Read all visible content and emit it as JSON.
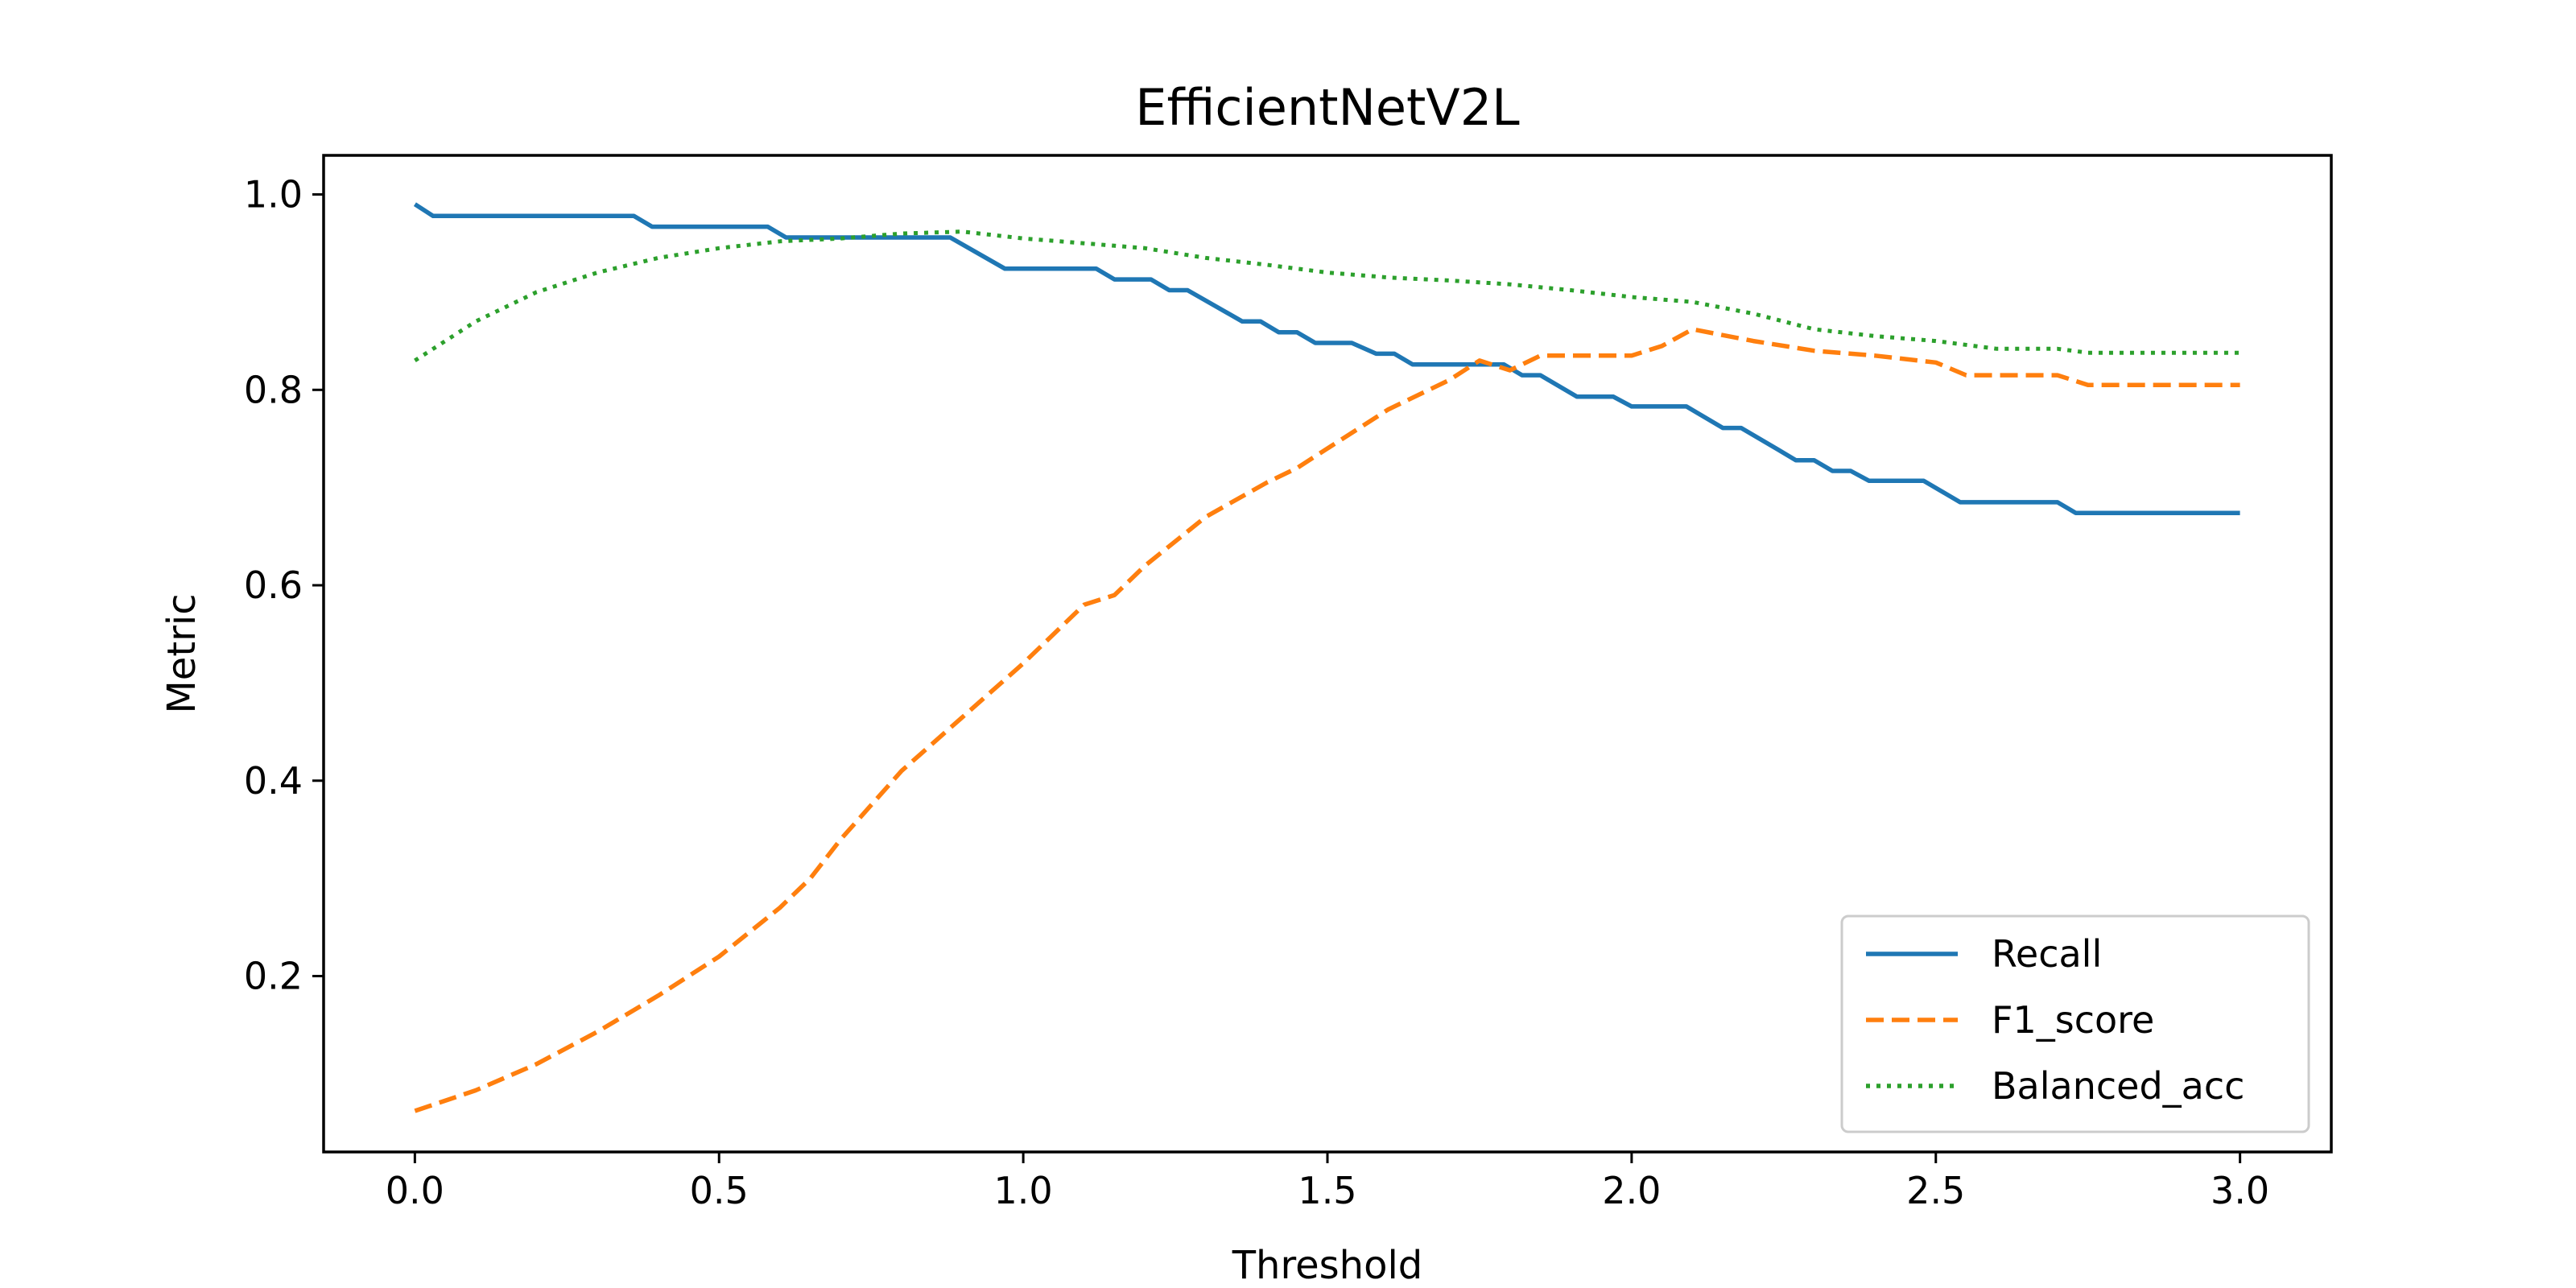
{
  "chart_data": {
    "type": "line",
    "title": "EfficientNetV2L",
    "xlabel": "Threshold",
    "ylabel": "Metric",
    "xlim": [
      -0.15,
      3.15
    ],
    "ylim": [
      0.02,
      1.04
    ],
    "xticks": [
      0.0,
      0.5,
      1.0,
      1.5,
      2.0,
      2.5,
      3.0
    ],
    "xtick_labels": [
      "0.0",
      "0.5",
      "1.0",
      "1.5",
      "2.0",
      "2.5",
      "3.0"
    ],
    "yticks": [
      0.2,
      0.4,
      0.6,
      0.8,
      1.0
    ],
    "ytick_labels": [
      "0.2",
      "0.4",
      "0.6",
      "0.8",
      "1.0"
    ],
    "grid": false,
    "legend_position": "lower-right",
    "series": [
      {
        "name": "Recall",
        "color": "#1f77b4",
        "style": "solid",
        "x": [
          0.0,
          0.03,
          0.36,
          0.39,
          0.58,
          0.61,
          0.88,
          0.97,
          1.12,
          1.15,
          1.21,
          1.24,
          1.27,
          1.36,
          1.39,
          1.42,
          1.45,
          1.48,
          1.54,
          1.58,
          1.61,
          1.64,
          1.79,
          1.82,
          1.85,
          1.91,
          1.97,
          2.0,
          2.09,
          2.15,
          2.18,
          2.24,
          2.27,
          2.3,
          2.33,
          2.36,
          2.39,
          2.48,
          2.54,
          2.7,
          2.73,
          3.0
        ],
        "values": [
          0.99,
          0.978,
          0.978,
          0.967,
          0.967,
          0.956,
          0.956,
          0.924,
          0.924,
          0.913,
          0.913,
          0.902,
          0.902,
          0.87,
          0.87,
          0.859,
          0.859,
          0.848,
          0.848,
          0.837,
          0.837,
          0.826,
          0.826,
          0.815,
          0.815,
          0.793,
          0.793,
          0.783,
          0.783,
          0.761,
          0.761,
          0.739,
          0.728,
          0.728,
          0.717,
          0.717,
          0.707,
          0.707,
          0.685,
          0.685,
          0.674,
          0.674
        ]
      },
      {
        "name": "F1_score",
        "color": "#ff7f0e",
        "style": "dashed",
        "x": [
          0.0,
          0.1,
          0.2,
          0.3,
          0.4,
          0.5,
          0.6,
          0.65,
          0.7,
          0.8,
          0.9,
          1.0,
          1.1,
          1.15,
          1.2,
          1.3,
          1.4,
          1.45,
          1.5,
          1.6,
          1.7,
          1.75,
          1.8,
          1.85,
          1.9,
          2.0,
          2.05,
          2.1,
          2.2,
          2.3,
          2.4,
          2.5,
          2.55,
          2.7,
          2.75,
          3.0
        ],
        "values": [
          0.062,
          0.083,
          0.11,
          0.143,
          0.18,
          0.22,
          0.27,
          0.3,
          0.34,
          0.41,
          0.465,
          0.52,
          0.58,
          0.59,
          0.62,
          0.67,
          0.705,
          0.72,
          0.74,
          0.78,
          0.81,
          0.83,
          0.82,
          0.835,
          0.835,
          0.835,
          0.845,
          0.862,
          0.85,
          0.84,
          0.835,
          0.828,
          0.815,
          0.815,
          0.805,
          0.805
        ]
      },
      {
        "name": "Balanced_acc",
        "color": "#2ca02c",
        "style": "dotted",
        "x": [
          0.0,
          0.1,
          0.2,
          0.3,
          0.4,
          0.5,
          0.6,
          0.7,
          0.8,
          0.9,
          1.0,
          1.1,
          1.2,
          1.3,
          1.4,
          1.5,
          1.6,
          1.7,
          1.8,
          1.9,
          2.0,
          2.1,
          2.2,
          2.3,
          2.4,
          2.5,
          2.6,
          2.7,
          2.75,
          3.0
        ],
        "values": [
          0.83,
          0.87,
          0.9,
          0.92,
          0.935,
          0.945,
          0.952,
          0.955,
          0.96,
          0.962,
          0.955,
          0.95,
          0.945,
          0.935,
          0.928,
          0.92,
          0.915,
          0.912,
          0.908,
          0.902,
          0.895,
          0.89,
          0.878,
          0.862,
          0.855,
          0.85,
          0.842,
          0.842,
          0.838,
          0.838
        ]
      }
    ]
  }
}
